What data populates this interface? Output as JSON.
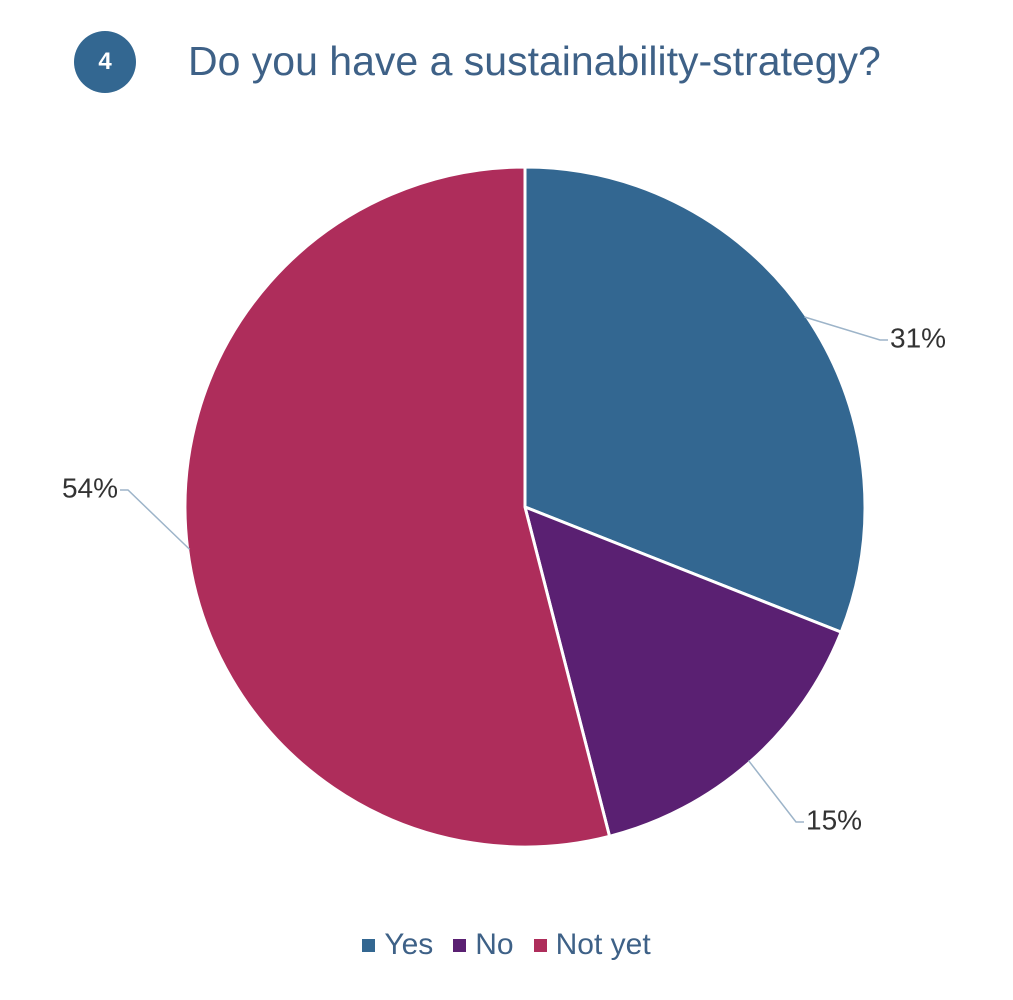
{
  "header": {
    "badge_number": "4",
    "title": "Do you have a sustainability-strategy?"
  },
  "chart_data": {
    "type": "pie",
    "title": "Do you have a sustainability-strategy?",
    "legend_position": "bottom",
    "start_angle_deg": 0,
    "direction": "clockwise",
    "slices": [
      {
        "name": "Yes",
        "value": 31,
        "label": "31%",
        "color": "#336791"
      },
      {
        "name": "No",
        "value": 15,
        "label": "15%",
        "color": "#5a2072"
      },
      {
        "name": "Not yet",
        "value": 54,
        "label": "54%",
        "color": "#ae2d5b"
      }
    ],
    "leader_line_color": "#9db4c9"
  }
}
